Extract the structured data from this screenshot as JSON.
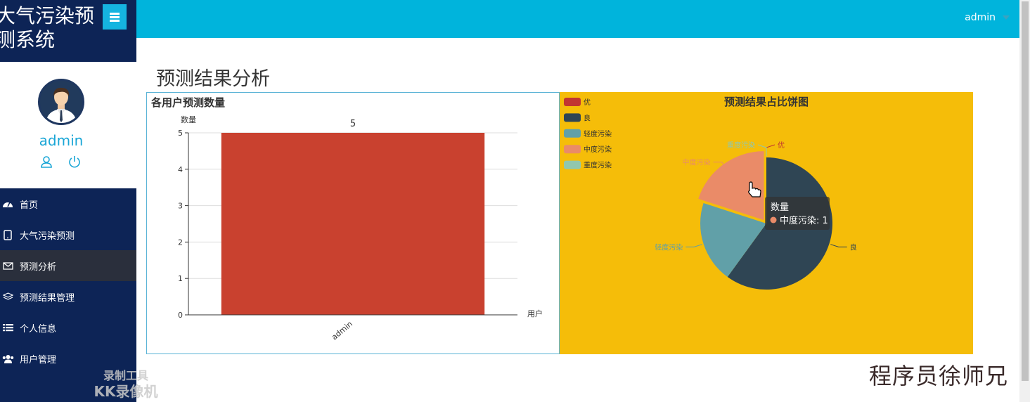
{
  "brand": {
    "title": "大气污染预测系统",
    "title_line1": "大气污染预",
    "title_line2": "测系统"
  },
  "user": {
    "name": "admin",
    "top_name": "admin"
  },
  "nav": [
    {
      "label": "首页",
      "icon": "dashboard-icon"
    },
    {
      "label": "大气污染预测",
      "icon": "tablet-icon"
    },
    {
      "label": "预测分析",
      "icon": "envelope-icon",
      "active": true
    },
    {
      "label": "预测结果管理",
      "icon": "layers-icon"
    },
    {
      "label": "个人信息",
      "icon": "list-icon"
    },
    {
      "label": "用户管理",
      "icon": "users-icon"
    }
  ],
  "page": {
    "title": "预测结果分析"
  },
  "watermark": {
    "line1": "录制工具",
    "line2": "KK录像机"
  },
  "signature": "程序员徐师兄",
  "colors": {
    "topbar": "#00b4dc",
    "sidebar": "#0d2456",
    "bar": "#c9412f",
    "pie_bg": "#f5bd09"
  },
  "chart_data": [
    {
      "type": "bar",
      "title": "各用户预测数量",
      "ylabel": "数量",
      "xlabel": "用户",
      "categories": [
        "admin"
      ],
      "values": [
        5
      ],
      "ylim": [
        0,
        5
      ],
      "yticks": [
        0,
        1,
        2,
        3,
        4,
        5
      ],
      "data_labels": [
        "5"
      ],
      "grid": true
    },
    {
      "type": "pie",
      "title": "预测结果占比饼图",
      "legend_position": "top-left",
      "labels": [
        "优",
        "良",
        "轻度污染",
        "中度污染",
        "重度污染"
      ],
      "values": [
        0,
        3,
        1,
        1,
        0
      ],
      "colors": [
        "#c23531",
        "#2f4554",
        "#61a0a8",
        "#ea8b68",
        "#91c7ae"
      ],
      "tooltip": {
        "title": "数量",
        "item": "中度污染: 1"
      }
    }
  ]
}
